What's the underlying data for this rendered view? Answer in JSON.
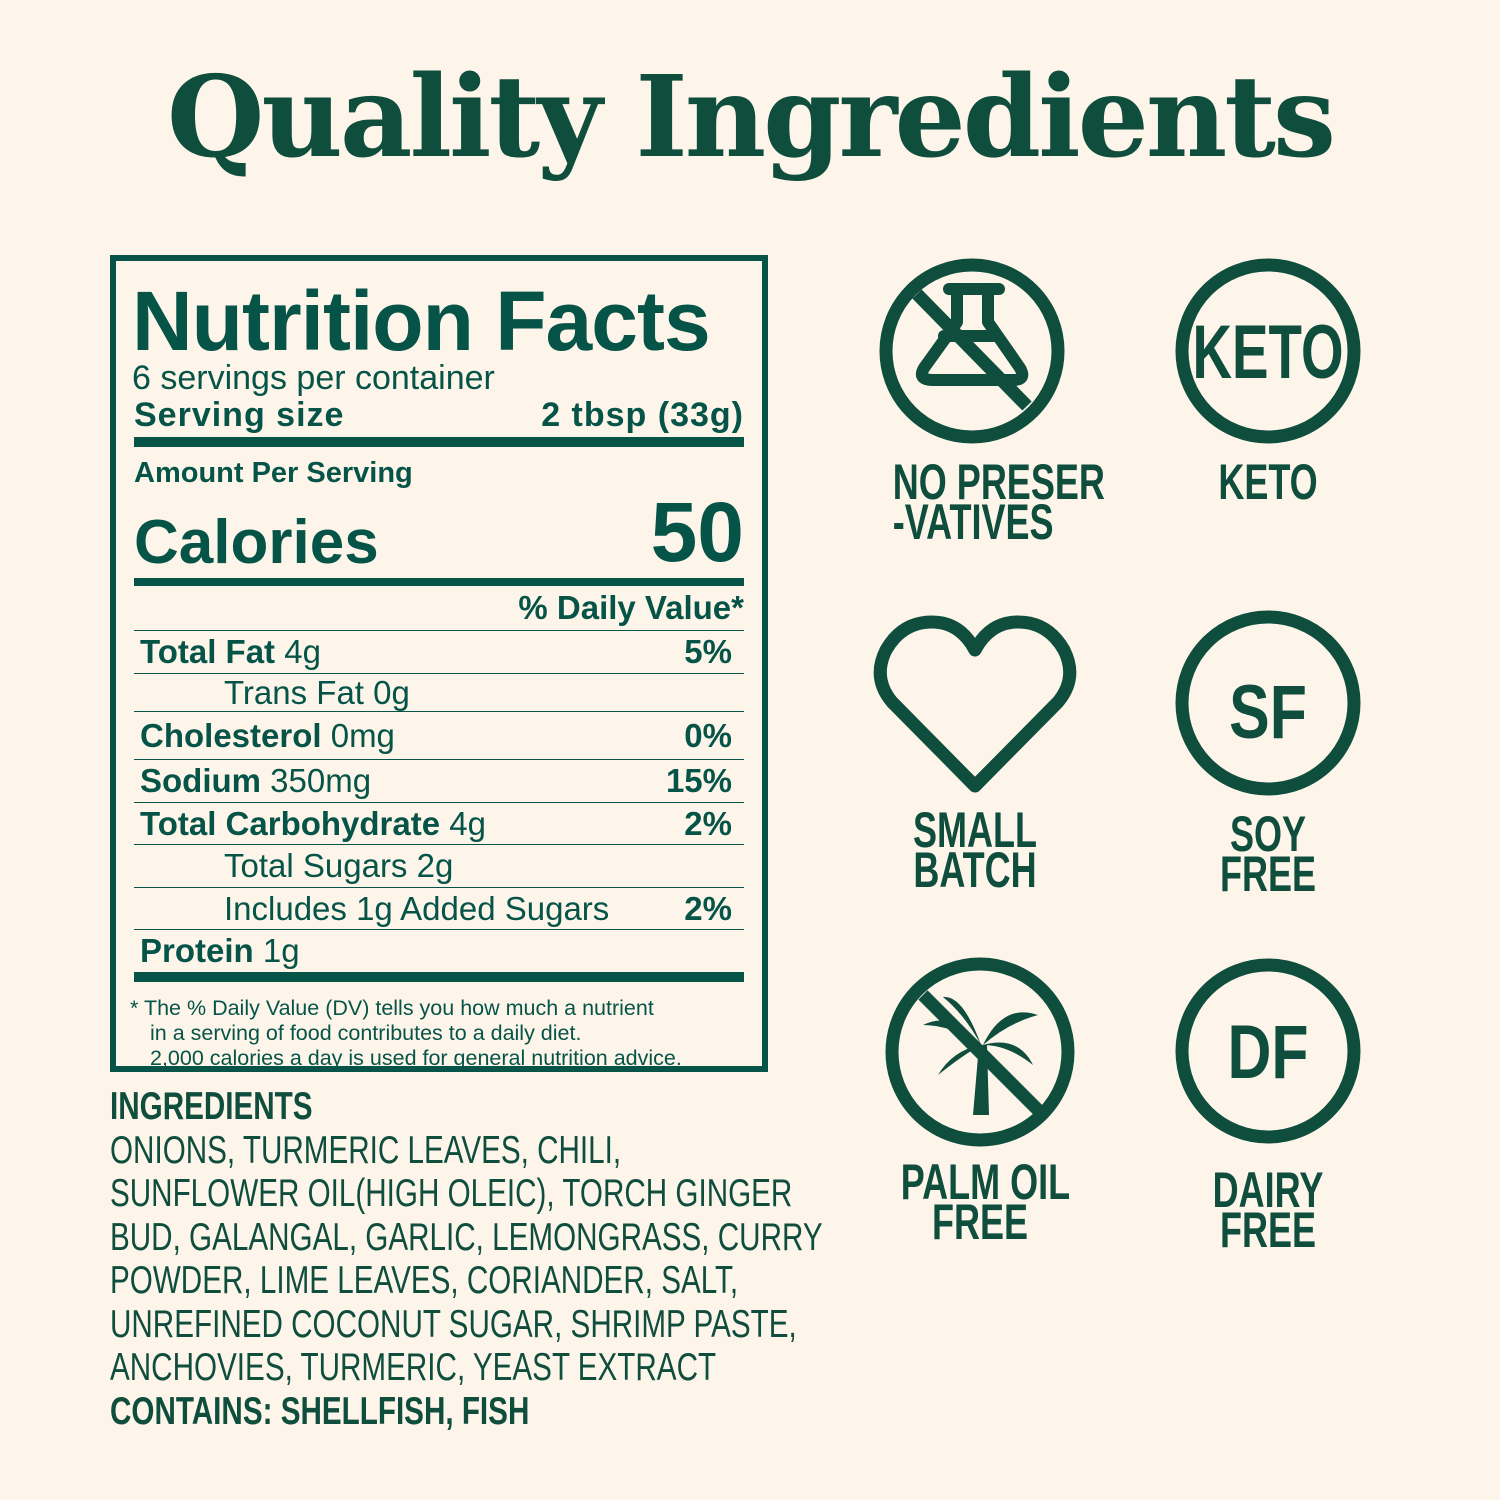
{
  "title": "Quality Ingredients",
  "colors": {
    "background": "#fdf5ea",
    "brand_green": "#0f4d3d",
    "panel_green": "#065448"
  },
  "nutrition": {
    "title": "Nutrition Facts",
    "servings": "6 servings per container",
    "serving_size_label": "Serving size",
    "serving_size_value": "2 tbsp (33g)",
    "amount_per_serving": "Amount Per Serving",
    "calories_label": "Calories",
    "calories_value": "50",
    "dv_header": "% Daily Value*",
    "rows": [
      {
        "label": "Total Fat",
        "amount": "4g",
        "dv": "5%"
      },
      {
        "label": "Trans Fat 0g",
        "amount": "",
        "dv": ""
      },
      {
        "label": "Cholesterol",
        "amount": "0mg",
        "dv": "0%"
      },
      {
        "label": "Sodium",
        "amount": "350mg",
        "dv": "15%"
      },
      {
        "label": "Total Carbohydrate",
        "amount": "4g",
        "dv": "2%"
      },
      {
        "label": "Total Sugars 2g",
        "amount": "",
        "dv": ""
      },
      {
        "label": "Includes 1g Added Sugars",
        "amount": "",
        "dv": "2%"
      },
      {
        "label": "Protein",
        "amount": "1g",
        "dv": ""
      }
    ],
    "footnote": [
      "* The % Daily Value (DV) tells you how much a nutrient",
      "in a serving of food contributes to a daily diet.",
      "2,000 calories a day is used for general nutrition advice."
    ]
  },
  "ingredients": {
    "heading": "INGREDIENTS",
    "lines": [
      "ONIONS, TURMERIC LEAVES, CHILI,",
      "SUNFLOWER OIL(HIGH OLEIC), TORCH GINGER",
      "BUD, GALANGAL, GARLIC, LEMONGRASS, CURRY",
      "POWDER, LIME LEAVES, CORIANDER, SALT,",
      "UNREFINED COCONUT SUGAR, SHRIMP PASTE,",
      "ANCHOVIES, TURMERIC, YEAST EXTRACT"
    ],
    "contains": "CONTAINS:  SHELLFISH, FISH"
  },
  "badges": [
    {
      "icon": "no-flask-icon",
      "label1": "NO PRESER",
      "label2": "-VATIVES"
    },
    {
      "icon": "keto-icon",
      "icon_text": "KETO",
      "label1": "KETO",
      "label2": ""
    },
    {
      "icon": "heart-icon",
      "label1": "SMALL",
      "label2": "BATCH"
    },
    {
      "icon": "sf-icon",
      "icon_text": "SF",
      "label1": "SOY",
      "label2": "FREE"
    },
    {
      "icon": "no-palm-icon",
      "label1": "PALM OIL",
      "label2": "FREE"
    },
    {
      "icon": "df-icon",
      "icon_text": "DF",
      "label1": "DAIRY",
      "label2": "FREE"
    }
  ]
}
